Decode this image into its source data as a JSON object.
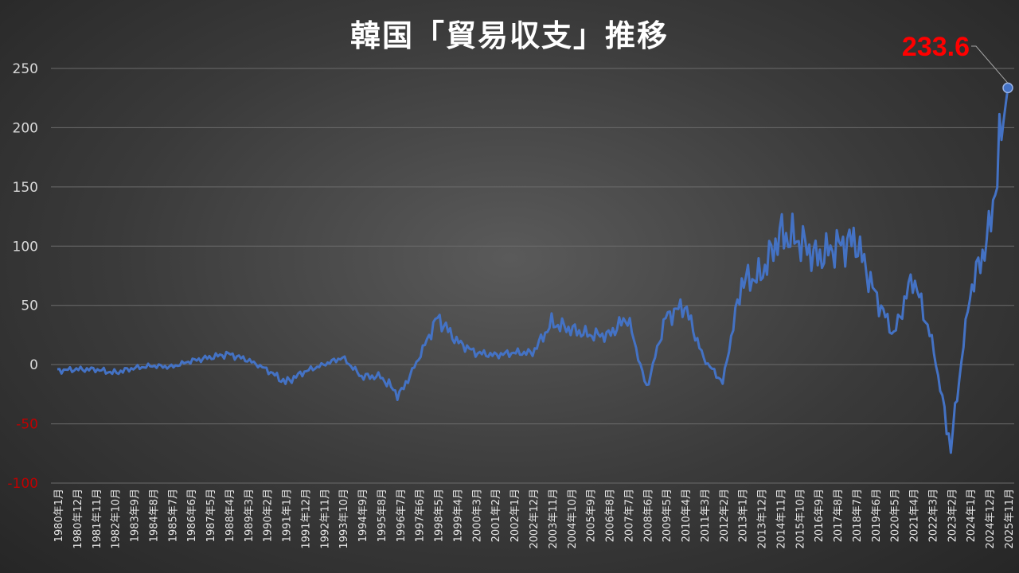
{
  "chart_data": {
    "type": "line",
    "title": "韓国「貿易収支」推移",
    "xlabel": "",
    "ylabel": "",
    "ylim": [
      -100,
      250
    ],
    "yticks": [
      250,
      200,
      150,
      100,
      50,
      0,
      -50,
      -100
    ],
    "grid": true,
    "legend": "none",
    "colors": {
      "line": "#4472c4",
      "negative_tick": "#c00000",
      "positive_tick": "#d9d9d9",
      "last_value_label": "#ff0000",
      "title": "#ffffff"
    },
    "x_tick_labels": [
      "1980年1月",
      "1980年12月",
      "1981年11月",
      "1982年10月",
      "1983年9月",
      "1984年8月",
      "1985年7月",
      "1986年6月",
      "1987年5月",
      "1988年4月",
      "1989年3月",
      "1990年2月",
      "1991年1月",
      "1991年12月",
      "1992年11月",
      "1993年10月",
      "1994年9月",
      "1995年8月",
      "1996年7月",
      "1997年6月",
      "1998年5月",
      "1999年4月",
      "2000年3月",
      "2001年2月",
      "2002年1月",
      "2002年12月",
      "2003年11月",
      "2004年10月",
      "2005年9月",
      "2006年8月",
      "2007年7月",
      "2008年6月",
      "2009年5月",
      "2010年4月",
      "2011年3月",
      "2012年2月",
      "2013年1月",
      "2013年12月",
      "2014年11月",
      "2015年10月",
      "2016年9月",
      "2017年8月",
      "2018年7月",
      "2019年6月",
      "2020年5月",
      "2021年4月",
      "2022年3月",
      "2023年2月",
      "2024年1月",
      "2024年12月",
      "2025年11月"
    ],
    "series": [
      {
        "values_at_ticks": [
          -5,
          -4,
          -4,
          -7,
          -3,
          -1,
          -2,
          3,
          6,
          9,
          4,
          -4,
          -15,
          -6,
          0,
          6,
          -10,
          -10,
          -26,
          5,
          40,
          20,
          10,
          8,
          10,
          10,
          35,
          30,
          25,
          25,
          40,
          -20,
          40,
          50,
          5,
          -15,
          70,
          75,
          110,
          105,
          90,
          100,
          105,
          60,
          25,
          75,
          20,
          -70,
          60,
          110,
          233.6
        ]
      }
    ],
    "annotations": [
      {
        "label": "233.6",
        "value": 233.6,
        "at": "2025年11月"
      }
    ]
  }
}
